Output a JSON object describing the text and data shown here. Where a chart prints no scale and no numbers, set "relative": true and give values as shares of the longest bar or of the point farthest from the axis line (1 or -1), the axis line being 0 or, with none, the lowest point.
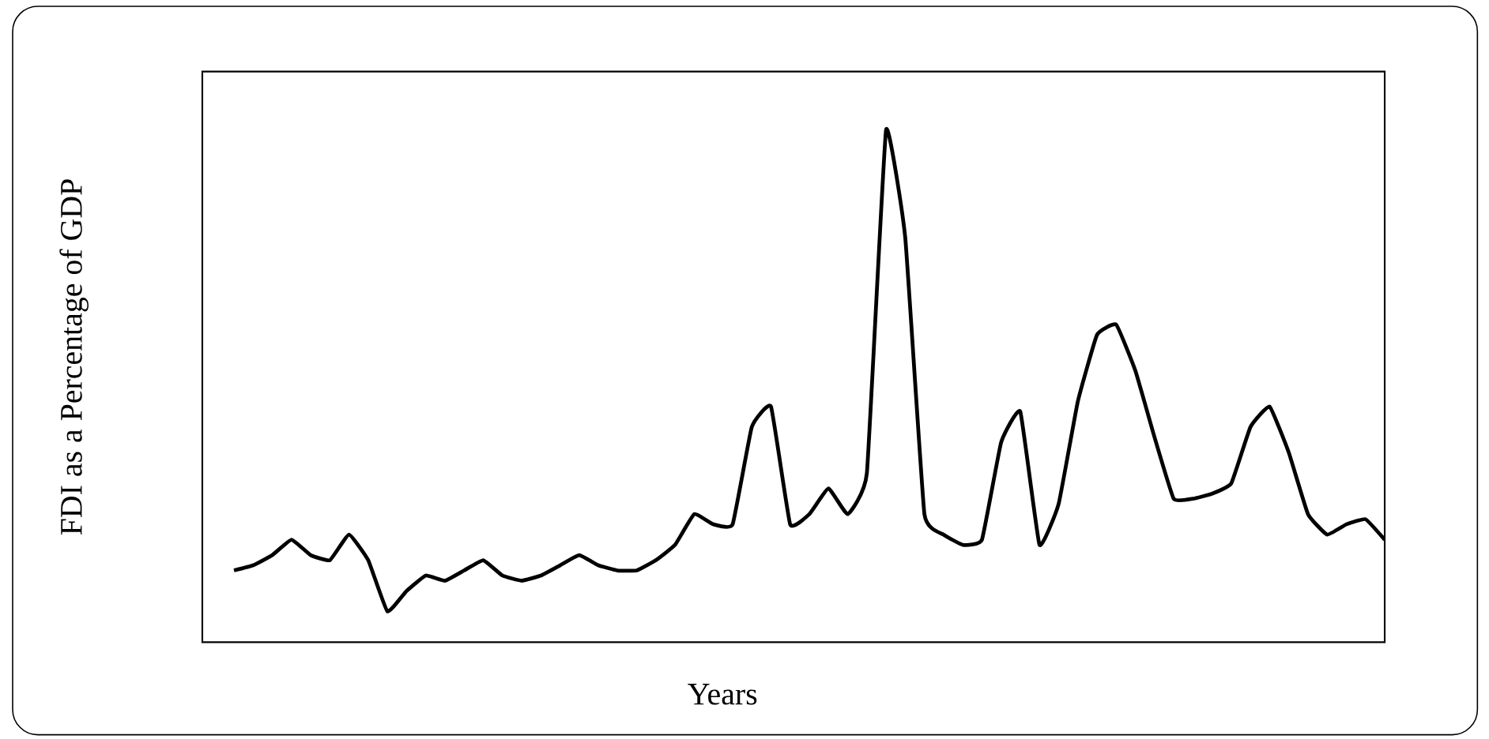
{
  "chart_data": {
    "type": "line",
    "relative": true,
    "xlabel": "Years",
    "ylabel": "FDI as a Percentage of GDP",
    "color": "#000000",
    "marker": "none",
    "categories": [
      null,
      null,
      null,
      null,
      null,
      null,
      null,
      null,
      null,
      null,
      null,
      null,
      null,
      null,
      null,
      null,
      null,
      null,
      null,
      null,
      null,
      null,
      null,
      null,
      null,
      null,
      null,
      null,
      null,
      null,
      null,
      null,
      null,
      null,
      null,
      null,
      null,
      null,
      null,
      null,
      null,
      null,
      null,
      null,
      null,
      null,
      null,
      null,
      null,
      null,
      null,
      null,
      null,
      null,
      null,
      null,
      null,
      null,
      null,
      null,
      null
    ],
    "values": [
      0.14,
      0.15,
      0.17,
      0.2,
      0.17,
      0.16,
      0.21,
      0.16,
      0.06,
      0.1,
      0.13,
      0.12,
      0.14,
      0.16,
      0.13,
      0.12,
      0.13,
      0.15,
      0.17,
      0.15,
      0.14,
      0.14,
      0.16,
      0.19,
      0.25,
      0.23,
      0.23,
      0.42,
      0.46,
      0.23,
      0.25,
      0.3,
      0.25,
      0.33,
      1,
      0.79,
      0.25,
      0.21,
      0.19,
      0.2,
      0.39,
      0.45,
      0.19,
      0.27,
      0.47,
      0.6,
      0.62,
      0.53,
      0.4,
      0.28,
      0.28,
      0.29,
      0.31,
      0.42,
      0.46,
      0.37,
      0.25,
      0.21,
      0.23,
      0.24,
      0.2
    ]
  }
}
